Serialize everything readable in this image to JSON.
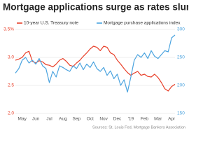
{
  "chart_data": {
    "type": "line",
    "title": "Mortgage applications surge as rates slump",
    "source": "Sources: St. Louis Fed, Mortgage Bankers Association",
    "categories": [
      null,
      null,
      "May",
      null,
      null,
      null,
      "Jun",
      null,
      null,
      null,
      "Jul",
      null,
      null,
      null,
      "Aug",
      null,
      null,
      null,
      "Sep",
      null,
      null,
      null,
      "Oct",
      null,
      null,
      null,
      "Nov",
      null,
      null,
      null,
      "Dec",
      null,
      null,
      null,
      "'19",
      null,
      null,
      null,
      "Feb",
      null,
      null,
      null,
      "Mar",
      null,
      null,
      null,
      "Apr",
      null
    ],
    "series": [
      {
        "name": "10-year U.S. Treasury note",
        "color": "#e8402a",
        "axis": "y",
        "values": [
          2.95,
          2.97,
          3.0,
          3.08,
          3.11,
          2.93,
          2.9,
          2.94,
          2.92,
          2.87,
          2.86,
          2.83,
          2.88,
          2.95,
          2.98,
          2.93,
          2.86,
          2.84,
          2.9,
          2.95,
          3.02,
          3.08,
          3.15,
          3.2,
          3.18,
          3.12,
          3.2,
          3.18,
          3.08,
          3.05,
          2.95,
          2.88,
          2.8,
          2.73,
          2.68,
          2.72,
          2.75,
          2.68,
          2.7,
          2.66,
          2.65,
          2.7,
          2.64,
          2.55,
          2.44,
          2.4,
          2.48,
          2.52
        ]
      },
      {
        "name": "Mortgage purchase applications index",
        "color": "#4aa3df",
        "axis": "y2",
        "values": [
          222,
          230,
          245,
          250,
          240,
          245,
          238,
          248,
          235,
          230,
          205,
          225,
          215,
          235,
          232,
          228,
          225,
          235,
          230,
          240,
          228,
          238,
          232,
          242,
          230,
          225,
          232,
          218,
          226,
          212,
          220,
          200,
          210,
          188,
          215,
          245,
          255,
          250,
          258,
          248,
          262,
          252,
          248,
          255,
          262,
          260,
          285,
          290
        ]
      }
    ],
    "ylim": [
      2,
      3.5
    ],
    "yticks": [
      {
        "value": 2,
        "label": "2.0"
      },
      2.5,
      {
        "value": 3,
        "label": "3.0"
      },
      {
        "value": 3.5,
        "label": "3.5%"
      }
    ],
    "y2lim": [
      150,
      300
    ],
    "y2ticks": [
      150,
      200,
      250,
      300
    ],
    "grid": true
  }
}
